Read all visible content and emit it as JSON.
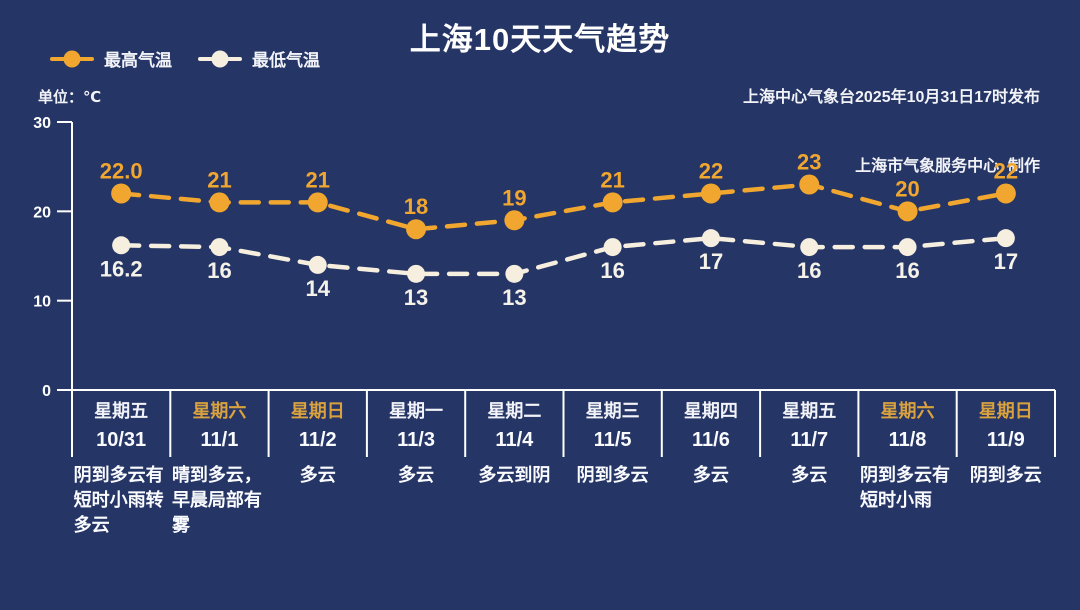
{
  "header": {
    "title": "上海10天天气趋势",
    "publisher_line1": "上海中心气象台2025年10月31日17时发布",
    "publisher_line2": "上海市气象服务中心  制作"
  },
  "legend": [
    {
      "label": "最高气温",
      "color": "#F0A62F"
    },
    {
      "label": "最低气温",
      "color": "#F6EEDF"
    }
  ],
  "unit_label": "单位：℃",
  "colors": {
    "background": "#253565",
    "axis": "#FFFFFF",
    "text": "#FFFFFF",
    "high_series": "#F0A62F",
    "high_value_label": "#F0A62F",
    "low_series": "#F6EEDF",
    "low_value_label": "#F5F2EA",
    "weekend_day_label": "#D9A23E"
  },
  "chart_data": {
    "type": "line",
    "title": "上海10天天气趋势",
    "unit": "℃",
    "ylim": [
      0,
      30
    ],
    "yticks": [
      0,
      10,
      20,
      30
    ],
    "grid": false,
    "legend_position": "top-left",
    "line_style": "dashed",
    "categories": [
      "10/31",
      "11/1",
      "11/2",
      "11/3",
      "11/4",
      "11/5",
      "11/6",
      "11/7",
      "11/8",
      "11/9"
    ],
    "series": [
      {
        "name": "最高气温",
        "color": "#F0A62F",
        "label_color": "#F0A62F",
        "label_position": "above",
        "values": [
          22.0,
          21,
          21,
          18,
          19,
          21,
          22,
          23,
          20,
          22
        ],
        "labels": [
          "22.0",
          "21",
          "21",
          "18",
          "19",
          "21",
          "22",
          "23",
          "20",
          "22"
        ]
      },
      {
        "name": "最低气温",
        "color": "#F6EEDF",
        "label_color": "#F5F2EA",
        "label_position": "below",
        "values": [
          16.2,
          16,
          14,
          13,
          13,
          16,
          17,
          16,
          16,
          17
        ],
        "labels": [
          "16.2",
          "16",
          "14",
          "13",
          "13",
          "16",
          "17",
          "16",
          "16",
          "17"
        ]
      }
    ],
    "columns": [
      {
        "day": "星期五",
        "date": "10/31",
        "weather": "阴到多云有短时小雨转多云",
        "weekend": false
      },
      {
        "day": "星期六",
        "date": "11/1",
        "weather": "晴到多云，早晨局部有雾",
        "weekend": true
      },
      {
        "day": "星期日",
        "date": "11/2",
        "weather": "多云",
        "weekend": true
      },
      {
        "day": "星期一",
        "date": "11/3",
        "weather": "多云",
        "weekend": false
      },
      {
        "day": "星期二",
        "date": "11/4",
        "weather": "多云到阴",
        "weekend": false
      },
      {
        "day": "星期三",
        "date": "11/5",
        "weather": "阴到多云",
        "weekend": false
      },
      {
        "day": "星期四",
        "date": "11/6",
        "weather": "多云",
        "weekend": false
      },
      {
        "day": "星期五",
        "date": "11/7",
        "weather": "多云",
        "weekend": false
      },
      {
        "day": "星期六",
        "date": "11/8",
        "weather": "阴到多云有短时小雨",
        "weekend": true
      },
      {
        "day": "星期日",
        "date": "11/9",
        "weather": "阴到多云",
        "weekend": true
      }
    ]
  }
}
